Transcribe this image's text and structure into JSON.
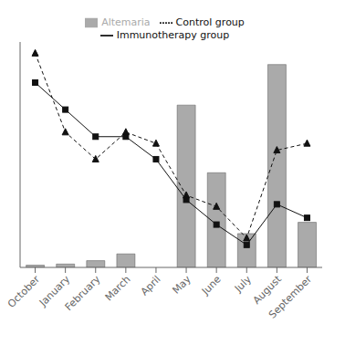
{
  "chart_data": {
    "type": "bar",
    "categories": [
      "October",
      "January",
      "February",
      "March",
      "April",
      "May",
      "June",
      "July",
      "August",
      "September"
    ],
    "series": [
      {
        "name": "Altemaria",
        "type": "bar",
        "color": "#aaaaaa",
        "values": [
          0.01,
          0.015,
          0.03,
          0.06,
          0.0,
          0.72,
          0.42,
          0.15,
          0.9,
          0.2
        ]
      },
      {
        "name": "Immunotherapy group",
        "type": "line",
        "color": "#111111",
        "marker": "square",
        "line_style": "solid",
        "values": [
          0.82,
          0.7,
          0.58,
          0.58,
          0.48,
          0.3,
          0.19,
          0.1,
          0.28,
          0.22
        ]
      },
      {
        "name": "Control group",
        "type": "line",
        "color": "#111111",
        "marker": "triangle",
        "line_style": "dashed",
        "values": [
          0.95,
          0.6,
          0.48,
          0.6,
          0.55,
          0.32,
          0.27,
          0.13,
          0.52,
          0.55
        ]
      }
    ],
    "ylim": [
      0,
      1.0
    ],
    "tick_labels": "x",
    "legend": "top"
  }
}
